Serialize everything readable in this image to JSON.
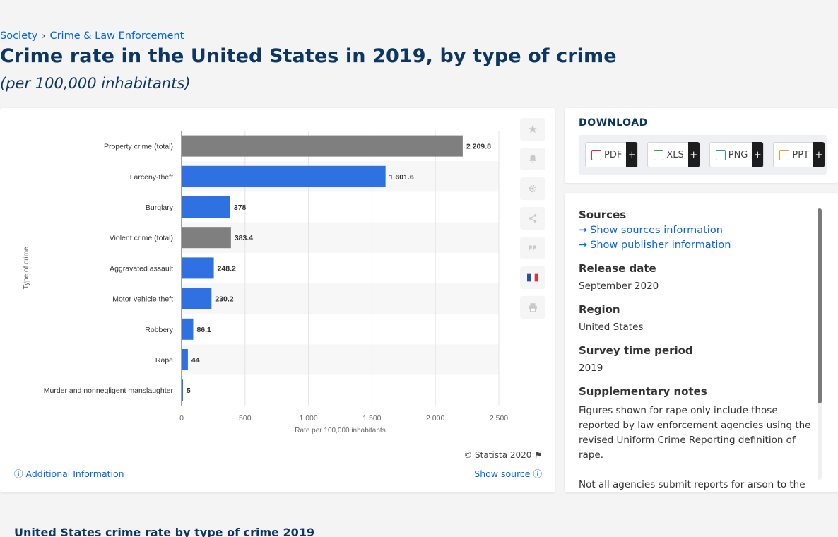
{
  "breadcrumb": {
    "items": [
      "Society",
      "Crime & Law Enforcement"
    ],
    "separator": "›"
  },
  "header": {
    "title": "Crime rate in the United States in 2019, by type of crime",
    "subtitle": "(per 100,000 inhabitants)"
  },
  "chart_data": {
    "type": "bar",
    "orientation": "horizontal",
    "categories": [
      "Property crime (total)",
      "Larceny-theft",
      "Burglary",
      "Violent crime (total)",
      "Aggravated assault",
      "Motor vehicle theft",
      "Robbery",
      "Rape",
      "Murder and nonnegligent manslaughter"
    ],
    "values": [
      2209.8,
      1601.6,
      378,
      383.4,
      248.2,
      230.2,
      86.1,
      44,
      5
    ],
    "value_labels": [
      "2 209.8",
      "1 601.6",
      "378",
      "383.4",
      "248.2",
      "230.2",
      "86.1",
      "44",
      "5"
    ],
    "bar_colors": [
      "#7f7f7f",
      "#2f71e0",
      "#2f71e0",
      "#7f7f7f",
      "#2f71e0",
      "#2f71e0",
      "#2f71e0",
      "#2f71e0",
      "#2f71e0"
    ],
    "xlabel": "Rate per 100,000 inhabitants",
    "ylabel": "Type of crime",
    "xlim": [
      0,
      2500
    ],
    "xticks": [
      0,
      500,
      1000,
      1500,
      2000,
      2500
    ],
    "xtick_labels": [
      "0",
      "500",
      "1 000",
      "1 500",
      "2 000",
      "2 500"
    ],
    "grid": true
  },
  "chart_footer": {
    "copyright": "© Statista 2020",
    "additional_info": "Additional Information",
    "show_source": "Show source"
  },
  "side_tools": [
    "star-icon",
    "bell-icon",
    "gear-icon",
    "share-icon",
    "quote-icon",
    "french-flag-icon",
    "print-icon"
  ],
  "download": {
    "title": "DOWNLOAD",
    "buttons": [
      {
        "label": "PDF",
        "color": "#e0302a"
      },
      {
        "label": "XLS",
        "color": "#3aa24a"
      },
      {
        "label": "PNG",
        "color": "#2f8ad8"
      },
      {
        "label": "PPT",
        "color": "#f2962b"
      }
    ],
    "plus": "+"
  },
  "info": {
    "sources_label": "Sources",
    "show_sources": "Show sources information",
    "show_publisher": "Show publisher information",
    "release_date_label": "Release date",
    "release_date": "September 2020",
    "region_label": "Region",
    "region": "United States",
    "survey_period_label": "Survey time period",
    "survey_period": "2019",
    "supplementary_label": "Supplementary notes",
    "note1": "Figures shown for rape only include those reported by law enforcement agencies using the revised Uniform Crime Reporting definition of rape.",
    "note2": "Not all agencies submit reports for arson to the FBI. As a result, the number of reports the FBI uses to"
  },
  "bottom": {
    "title": "United States crime rate by type of crime 2019"
  }
}
